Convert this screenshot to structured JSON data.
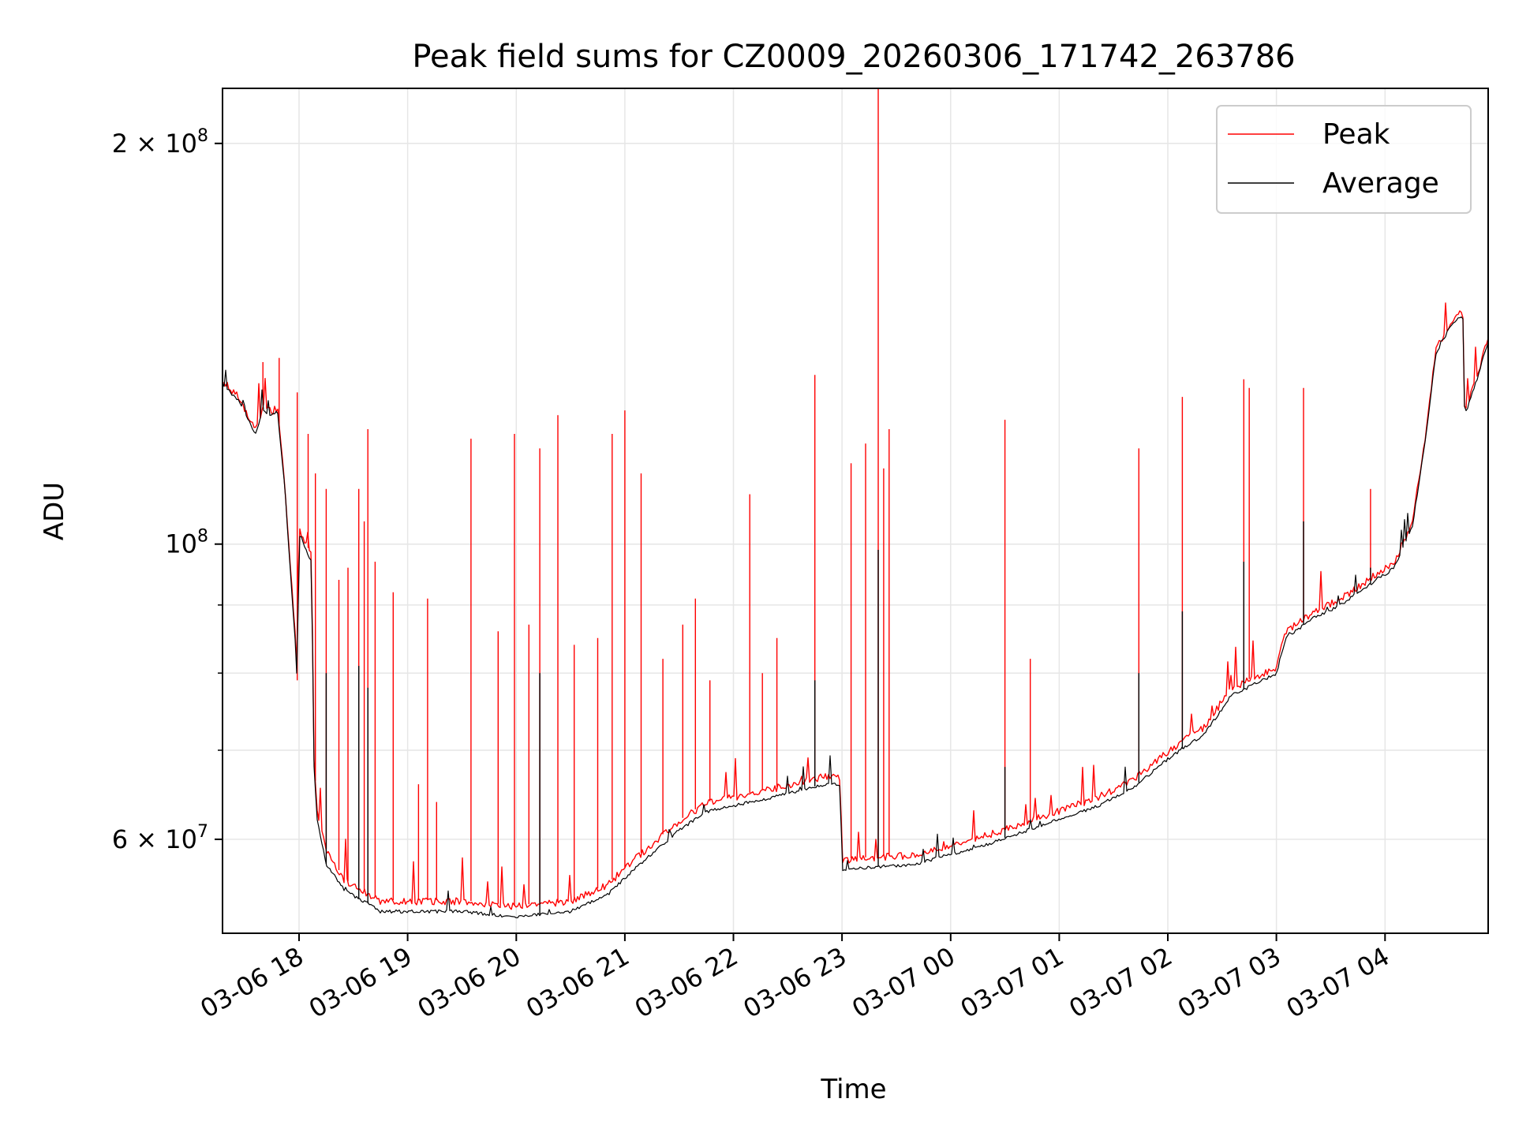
{
  "chart_data": {
    "type": "line",
    "title": "Peak field sums for CZ0009_20260306_171742_263786",
    "xlabel": "Time",
    "ylabel": "ADU",
    "yscale": "log",
    "ylim": [
      51000000,
      220000000
    ],
    "xlim": [
      "2026-03-06 17:17:42",
      "2026-03-07 04:57:00"
    ],
    "grid": true,
    "legend": {
      "position": "top-right",
      "entries": [
        "Peak",
        "Average"
      ]
    },
    "x_ticks": [
      {
        "value": "2026-03-06 18:00",
        "label": "03-06 18"
      },
      {
        "value": "2026-03-06 19:00",
        "label": "03-06 19"
      },
      {
        "value": "2026-03-06 20:00",
        "label": "03-06 20"
      },
      {
        "value": "2026-03-06 21:00",
        "label": "03-06 21"
      },
      {
        "value": "2026-03-06 22:00",
        "label": "03-06 22"
      },
      {
        "value": "2026-03-06 23:00",
        "label": "03-06 23"
      },
      {
        "value": "2026-03-07 00:00",
        "label": "03-07 00"
      },
      {
        "value": "2026-03-07 01:00",
        "label": "03-07 01"
      },
      {
        "value": "2026-03-07 02:00",
        "label": "03-07 02"
      },
      {
        "value": "2026-03-07 03:00",
        "label": "03-07 03"
      },
      {
        "value": "2026-03-07 04:00",
        "label": "03-07 04"
      }
    ],
    "y_ticks": [
      {
        "value": 60000000,
        "mantissa": "6",
        "exponent": "7"
      },
      {
        "value": 100000000,
        "mantissa": "",
        "exponent": "8"
      },
      {
        "value": 200000000,
        "mantissa": "2",
        "exponent": "8"
      }
    ],
    "y_minor_ticks": [
      70000000,
      80000000,
      90000000
    ],
    "series": [
      {
        "name": "Peak",
        "color": "#ff0000",
        "baseline": [
          [
            "2026-03-06 17:17:42",
            133000000
          ],
          [
            "2026-03-06 17:27",
            129000000
          ],
          [
            "2026-03-06 17:36",
            122000000
          ],
          [
            "2026-03-06 17:40",
            127000000
          ],
          [
            "2026-03-06 17:45",
            126000000
          ],
          [
            "2026-03-06 17:48",
            127000000
          ],
          [
            "2026-03-06 17:52",
            112000000
          ],
          [
            "2026-03-06 17:56",
            93000000
          ],
          [
            "2026-03-06 17:58",
            85000000
          ],
          [
            "2026-03-06 17:59",
            79000000
          ],
          [
            "2026-03-06 18:00",
            103000000
          ],
          [
            "2026-03-06 18:04",
            100000000
          ],
          [
            "2026-03-06 18:07",
            98000000
          ],
          [
            "2026-03-06 18:08",
            70000000
          ],
          [
            "2026-03-06 18:10",
            63000000
          ],
          [
            "2026-03-06 18:15",
            59000000
          ],
          [
            "2026-03-06 18:25",
            56000000
          ],
          [
            "2026-03-06 18:45",
            54000000
          ],
          [
            "2026-03-06 19:30",
            54000000
          ],
          [
            "2026-03-06 20:00",
            53500000
          ],
          [
            "2026-03-06 20:30",
            54000000
          ],
          [
            "2026-03-06 20:50",
            55500000
          ],
          [
            "2026-03-06 21:05",
            58000000
          ],
          [
            "2026-03-06 21:30",
            62000000
          ],
          [
            "2026-03-06 21:45",
            64000000
          ],
          [
            "2026-03-06 22:20",
            65500000
          ],
          [
            "2026-03-06 22:50",
            67000000
          ],
          [
            "2026-03-06 22:59",
            67000000
          ],
          [
            "2026-03-06 23:00",
            58000000
          ],
          [
            "2026-03-06 23:40",
            58500000
          ],
          [
            "2026-03-07 00:00",
            59500000
          ],
          [
            "2026-03-07 00:20",
            60500000
          ],
          [
            "2026-03-07 00:50",
            62500000
          ],
          [
            "2026-03-07 01:20",
            64500000
          ],
          [
            "2026-03-07 01:40",
            66500000
          ],
          [
            "2026-03-07 02:00",
            70000000
          ],
          [
            "2026-03-07 02:20",
            73000000
          ],
          [
            "2026-03-07 02:35",
            78000000
          ],
          [
            "2026-03-07 03:00",
            81000000
          ],
          [
            "2026-03-07 03:05",
            86000000
          ],
          [
            "2026-03-07 03:20",
            89000000
          ],
          [
            "2026-03-07 03:35",
            91000000
          ],
          [
            "2026-03-07 03:50",
            94000000
          ],
          [
            "2026-03-07 04:05",
            97000000
          ],
          [
            "2026-03-07 04:15",
            104000000
          ],
          [
            "2026-03-07 04:22",
            120000000
          ],
          [
            "2026-03-07 04:28",
            140000000
          ],
          [
            "2026-03-07 04:35",
            146000000
          ],
          [
            "2026-03-07 04:43",
            150000000
          ],
          [
            "2026-03-07 04:44",
            126000000
          ],
          [
            "2026-03-07 04:50",
            133000000
          ],
          [
            "2026-03-07 04:57",
            143000000
          ]
        ],
        "spikes": [
          [
            "2026-03-06 17:40",
            137000000
          ],
          [
            "2026-03-06 17:49",
            138000000
          ],
          [
            "2026-03-06 17:59",
            130000000
          ],
          [
            "2026-03-06 18:05",
            121000000
          ],
          [
            "2026-03-06 18:09",
            113000000
          ],
          [
            "2026-03-06 18:15",
            110000000
          ],
          [
            "2026-03-06 18:22",
            94000000
          ],
          [
            "2026-03-06 18:27",
            96000000
          ],
          [
            "2026-03-06 18:33",
            110000000
          ],
          [
            "2026-03-06 18:36",
            104000000
          ],
          [
            "2026-03-06 18:38",
            122000000
          ],
          [
            "2026-03-06 18:42",
            97000000
          ],
          [
            "2026-03-06 18:52",
            92000000
          ],
          [
            "2026-03-06 19:06",
            66000000
          ],
          [
            "2026-03-06 19:11",
            91000000
          ],
          [
            "2026-03-06 19:16",
            64000000
          ],
          [
            "2026-03-06 19:35",
            120000000
          ],
          [
            "2026-03-06 19:50",
            86000000
          ],
          [
            "2026-03-06 19:59",
            121000000
          ],
          [
            "2026-03-06 20:07",
            87000000
          ],
          [
            "2026-03-06 20:13",
            118000000
          ],
          [
            "2026-03-06 20:23",
            125000000
          ],
          [
            "2026-03-06 20:32",
            84000000
          ],
          [
            "2026-03-06 20:45",
            85000000
          ],
          [
            "2026-03-06 20:53",
            121000000
          ],
          [
            "2026-03-06 21:00",
            126000000
          ],
          [
            "2026-03-06 21:09",
            113000000
          ],
          [
            "2026-03-06 21:21",
            82000000
          ],
          [
            "2026-03-06 21:32",
            87000000
          ],
          [
            "2026-03-06 21:39",
            91000000
          ],
          [
            "2026-03-06 21:47",
            79000000
          ],
          [
            "2026-03-06 22:09",
            109000000
          ],
          [
            "2026-03-06 22:16",
            80000000
          ],
          [
            "2026-03-06 22:24",
            85000000
          ],
          [
            "2026-03-06 22:45",
            134000000
          ],
          [
            "2026-03-06 23:05",
            115000000
          ],
          [
            "2026-03-06 23:13",
            119000000
          ],
          [
            "2026-03-06 23:20",
            220000000
          ],
          [
            "2026-03-06 23:23",
            114000000
          ],
          [
            "2026-03-06 23:26",
            122000000
          ],
          [
            "2026-03-07 00:30",
            124000000
          ],
          [
            "2026-03-07 00:44",
            82000000
          ],
          [
            "2026-03-07 01:44",
            118000000
          ],
          [
            "2026-03-07 02:08",
            129000000
          ],
          [
            "2026-03-07 02:42",
            133000000
          ],
          [
            "2026-03-07 02:45",
            131000000
          ],
          [
            "2026-03-07 03:15",
            131000000
          ],
          [
            "2026-03-07 03:52",
            110000000
          ]
        ]
      },
      {
        "name": "Average",
        "color": "#000000",
        "baseline": [
          [
            "2026-03-06 17:17:42",
            132000000
          ],
          [
            "2026-03-06 17:27",
            128000000
          ],
          [
            "2026-03-06 17:36",
            121000000
          ],
          [
            "2026-03-06 17:40",
            126000000
          ],
          [
            "2026-03-06 17:45",
            125000000
          ],
          [
            "2026-03-06 17:48",
            126000000
          ],
          [
            "2026-03-06 17:52",
            111000000
          ],
          [
            "2026-03-06 17:56",
            92000000
          ],
          [
            "2026-03-06 17:58",
            84000000
          ],
          [
            "2026-03-06 17:59",
            78000000
          ],
          [
            "2026-03-06 18:00",
            102000000
          ],
          [
            "2026-03-06 18:04",
            99000000
          ],
          [
            "2026-03-06 18:07",
            97000000
          ],
          [
            "2026-03-06 18:08",
            69000000
          ],
          [
            "2026-03-06 18:10",
            62000000
          ],
          [
            "2026-03-06 18:15",
            57500000
          ],
          [
            "2026-03-06 18:25",
            55000000
          ],
          [
            "2026-03-06 18:45",
            53000000
          ],
          [
            "2026-03-06 19:30",
            53000000
          ],
          [
            "2026-03-06 20:00",
            52500000
          ],
          [
            "2026-03-06 20:30",
            53000000
          ],
          [
            "2026-03-06 20:50",
            54500000
          ],
          [
            "2026-03-06 21:05",
            57000000
          ],
          [
            "2026-03-06 21:30",
            61000000
          ],
          [
            "2026-03-06 21:45",
            63000000
          ],
          [
            "2026-03-06 22:20",
            64500000
          ],
          [
            "2026-03-06 22:50",
            66000000
          ],
          [
            "2026-03-06 22:59",
            66000000
          ],
          [
            "2026-03-06 23:00",
            57000000
          ],
          [
            "2026-03-06 23:40",
            57500000
          ],
          [
            "2026-03-07 00:00",
            58500000
          ],
          [
            "2026-03-07 00:20",
            59500000
          ],
          [
            "2026-03-07 00:50",
            61500000
          ],
          [
            "2026-03-07 01:20",
            63500000
          ],
          [
            "2026-03-07 01:40",
            65500000
          ],
          [
            "2026-03-07 02:00",
            69000000
          ],
          [
            "2026-03-07 02:20",
            72000000
          ],
          [
            "2026-03-07 02:35",
            77000000
          ],
          [
            "2026-03-07 03:00",
            80000000
          ],
          [
            "2026-03-07 03:05",
            85000000
          ],
          [
            "2026-03-07 03:20",
            88000000
          ],
          [
            "2026-03-07 03:35",
            90000000
          ],
          [
            "2026-03-07 03:50",
            93000000
          ],
          [
            "2026-03-07 04:05",
            96000000
          ],
          [
            "2026-03-07 04:15",
            103000000
          ],
          [
            "2026-03-07 04:22",
            119000000
          ],
          [
            "2026-03-07 04:28",
            139000000
          ],
          [
            "2026-03-07 04:35",
            145000000
          ],
          [
            "2026-03-07 04:43",
            149000000
          ],
          [
            "2026-03-07 04:44",
            125000000
          ],
          [
            "2026-03-07 04:50",
            132000000
          ],
          [
            "2026-03-07 04:57",
            142000000
          ]
        ],
        "spikes": [
          [
            "2026-03-06 18:15",
            80000000
          ],
          [
            "2026-03-06 18:33",
            81000000
          ],
          [
            "2026-03-06 18:38",
            78000000
          ],
          [
            "2026-03-06 20:13",
            80000000
          ],
          [
            "2026-03-06 22:45",
            79000000
          ],
          [
            "2026-03-06 23:20",
            99000000
          ],
          [
            "2026-03-07 00:30",
            68000000
          ],
          [
            "2026-03-07 01:44",
            80000000
          ],
          [
            "2026-03-07 02:08",
            89000000
          ],
          [
            "2026-03-07 02:42",
            97000000
          ],
          [
            "2026-03-07 03:15",
            104000000
          ],
          [
            "2026-03-07 03:52",
            96000000
          ]
        ]
      }
    ]
  }
}
